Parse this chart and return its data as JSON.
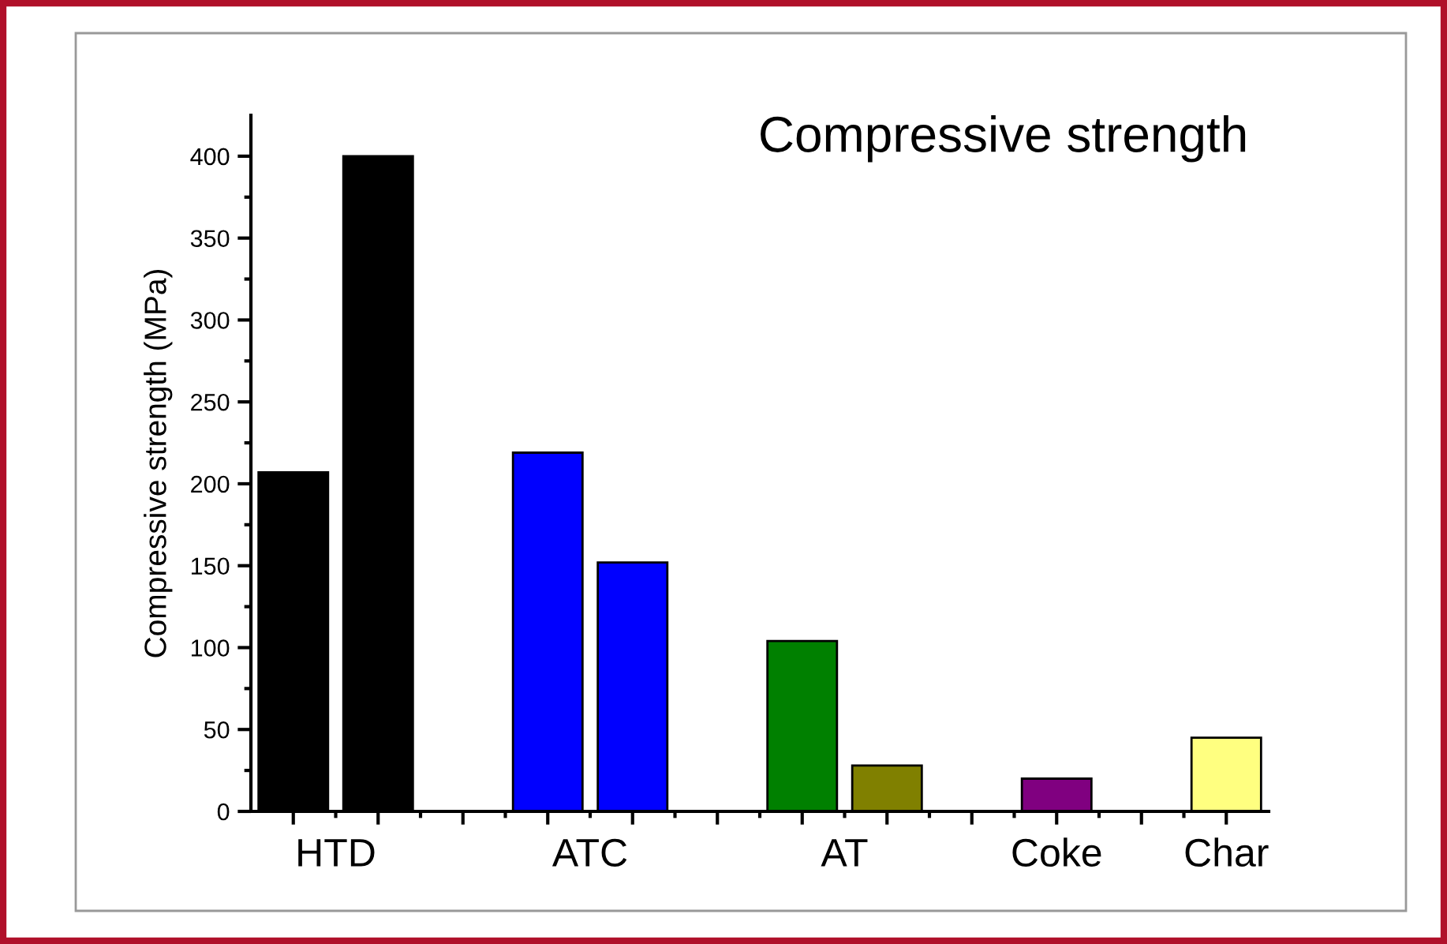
{
  "chart_data": {
    "type": "bar",
    "title": "Compressive strength",
    "ylabel": "Compressive strength (MPa)",
    "categories": [
      null,
      "HTD",
      null,
      null,
      null,
      null,
      null,
      "ATC",
      null,
      null,
      null,
      null,
      null,
      "AT",
      null,
      null,
      null,
      null,
      "Coke",
      null,
      null,
      null,
      "Char"
    ],
    "values": [
      207,
      null,
      400,
      null,
      null,
      null,
      219,
      null,
      152,
      null,
      null,
      null,
      104,
      null,
      28,
      null,
      null,
      null,
      20,
      null,
      null,
      null,
      45
    ],
    "colors": [
      "#000000",
      null,
      "#000000",
      null,
      null,
      null,
      "#0000ff",
      null,
      "#0000ff",
      null,
      null,
      null,
      "#008000",
      null,
      "#808000",
      null,
      null,
      null,
      "#800080",
      null,
      null,
      null,
      "#ffff80"
    ],
    "ylim": [
      0,
      425
    ],
    "yticks": [
      0,
      {
        "value": 25,
        "label": null
      },
      50,
      {
        "value": 75,
        "label": null
      },
      100,
      {
        "value": 125,
        "label": null
      },
      150,
      {
        "value": 175,
        "label": null
      },
      200,
      {
        "value": 225,
        "label": null
      },
      250,
      {
        "value": 275,
        "label": null
      },
      300,
      {
        "value": 325,
        "label": null
      },
      350,
      {
        "value": 375,
        "label": null
      },
      400
    ],
    "grid": false,
    "legend": false
  }
}
